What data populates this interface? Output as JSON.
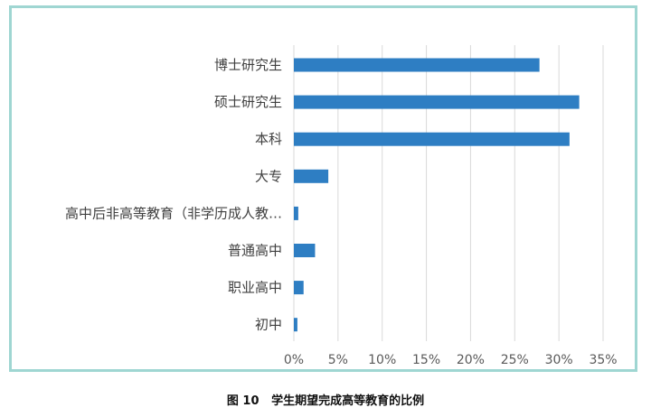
{
  "figure": {
    "caption_number": "图 10",
    "caption_text": "学生期望完成高等教育的比例"
  },
  "chart_data": {
    "type": "bar",
    "orientation": "horizontal",
    "categories": [
      "博士研究生",
      "硕士研究生",
      "本科",
      "大专",
      "高中后非高等教育（非学历成人教…",
      "普通高中",
      "职业高中",
      "初中"
    ],
    "values": [
      27.8,
      32.3,
      31.2,
      3.9,
      0.5,
      2.4,
      1.1,
      0.4
    ],
    "xlim": [
      0,
      35
    ],
    "ticks": [
      0,
      5,
      10,
      15,
      20,
      25,
      30,
      35
    ],
    "tick_labels": [
      "0%",
      "5%",
      "10%",
      "15%",
      "20%",
      "25%",
      "30%",
      "35%"
    ],
    "grid": true,
    "bar_color": "#2e7ec3",
    "grid_color": "#d9d9d9",
    "title": "",
    "xlabel": "",
    "ylabel": ""
  }
}
